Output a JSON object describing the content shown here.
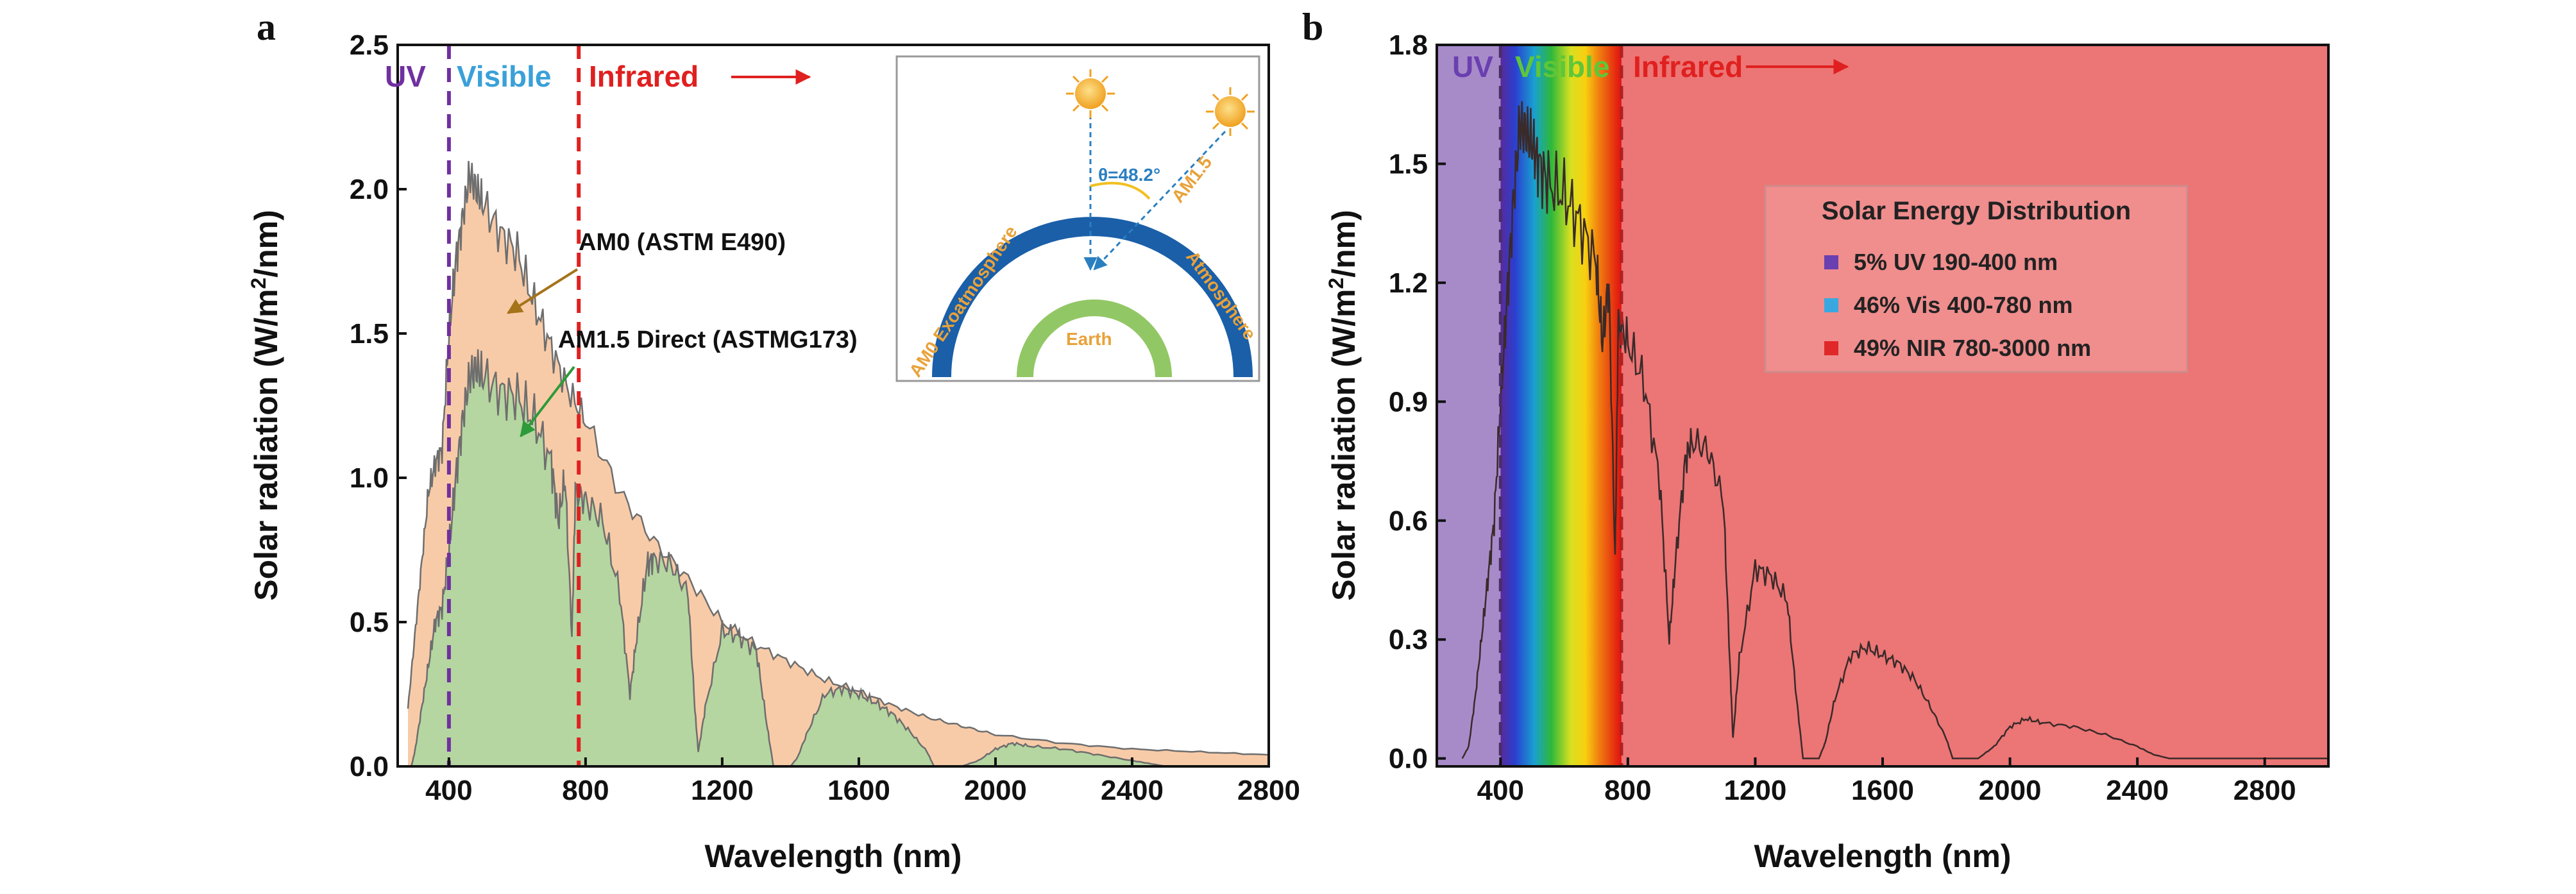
{
  "chart_data": [
    {
      "panel": "a",
      "type": "area",
      "xlabel": "Wavelength (nm)",
      "ylabel": "Solar radiation (W/m²/nm)",
      "xlim": [
        250,
        2800
      ],
      "ylim": [
        0,
        2.5
      ],
      "xticks": [
        400,
        800,
        1200,
        1600,
        2000,
        2400,
        2800
      ],
      "yticks": [
        0.0,
        0.5,
        1.0,
        1.5,
        2.0,
        2.5
      ],
      "xtick_labels": [
        "400",
        "800",
        "1200",
        "1600",
        "2000",
        "2400",
        "2800"
      ],
      "ytick_labels": [
        "0.0",
        "0.5",
        "1.0",
        "1.5",
        "2.0",
        "2.5"
      ],
      "grid": false,
      "regions": [
        {
          "label": "UV",
          "color": "#7030a0"
        },
        {
          "label": "Visible",
          "color": "#3aa0d8"
        },
        {
          "label": "Infrared",
          "color": "#e02020"
        }
      ],
      "boundaries": [
        {
          "x": 400,
          "color": "#7030a0"
        },
        {
          "x": 780,
          "color": "#e02020"
        }
      ],
      "annotations": {
        "am0": "AM0 (ASTM E490)",
        "am15": "AM1.5 Direct (ASTMG173)"
      },
      "series": [
        {
          "name": "AM0 (ASTM E490)",
          "fill": "#f8cba8",
          "x": [
            280,
            300,
            320,
            340,
            360,
            380,
            400,
            420,
            440,
            460,
            480,
            500,
            550,
            600,
            650,
            700,
            750,
            800,
            900,
            1000,
            1100,
            1200,
            1300,
            1400,
            1500,
            1600,
            1700,
            1800,
            1900,
            2000,
            2200,
            2400,
            2600,
            2800
          ],
          "y": [
            0.2,
            0.45,
            0.7,
            0.95,
            1.05,
            1.1,
            1.5,
            1.75,
            1.9,
            2.05,
            2.0,
            1.95,
            1.85,
            1.78,
            1.6,
            1.45,
            1.3,
            1.2,
            0.95,
            0.78,
            0.65,
            0.5,
            0.42,
            0.36,
            0.3,
            0.26,
            0.21,
            0.17,
            0.14,
            0.11,
            0.08,
            0.06,
            0.05,
            0.04
          ]
        },
        {
          "name": "AM1.5 Direct (ASTMG173)",
          "fill": "#b5d6a0",
          "x": [
            290,
            300,
            320,
            340,
            360,
            380,
            400,
            420,
            440,
            460,
            480,
            500,
            550,
            600,
            650,
            700,
            720,
            740,
            760,
            770,
            800,
            850,
            900,
            930,
            950,
            980,
            1000,
            1050,
            1100,
            1120,
            1130,
            1150,
            1200,
            1250,
            1300,
            1330,
            1350,
            1400,
            1420,
            1450,
            1500,
            1550,
            1600,
            1650,
            1700,
            1750,
            1800,
            1820,
            1850,
            1900,
            1950,
            2000,
            2050,
            2100,
            2200,
            2300,
            2400,
            2450,
            2500
          ],
          "y": [
            0,
            0.05,
            0.2,
            0.35,
            0.5,
            0.55,
            0.75,
            1.0,
            1.2,
            1.35,
            1.38,
            1.35,
            1.3,
            1.28,
            1.2,
            1.05,
            0.85,
            1.0,
            0.45,
            0.95,
            0.92,
            0.85,
            0.6,
            0.25,
            0.45,
            0.7,
            0.72,
            0.7,
            0.6,
            0.2,
            0.05,
            0.2,
            0.47,
            0.45,
            0.4,
            0.15,
            0,
            0,
            0.03,
            0.12,
            0.25,
            0.27,
            0.25,
            0.22,
            0.18,
            0.12,
            0.05,
            0,
            0,
            0,
            0.02,
            0.06,
            0.08,
            0.07,
            0.06,
            0.04,
            0.02,
            0.01,
            0
          ]
        }
      ],
      "inset": {
        "labels": [
          "AM0 Exoatmosphere",
          "AM1.5",
          "Atmosphere",
          "Earth"
        ],
        "angle_label": "θ=48.2°"
      }
    },
    {
      "panel": "b",
      "type": "line",
      "xlabel": "Wavelength (nm)",
      "ylabel": "Solar radiation (W/m²/nm)",
      "xlim": [
        200,
        3000
      ],
      "ylim": [
        -0.02,
        1.8
      ],
      "xticks": [
        400,
        800,
        1200,
        1600,
        2000,
        2400,
        2800
      ],
      "yticks": [
        0.0,
        0.3,
        0.6,
        0.9,
        1.2,
        1.5,
        1.8
      ],
      "xtick_labels": [
        "400",
        "800",
        "1200",
        "1600",
        "2000",
        "2400",
        "2800"
      ],
      "ytick_labels": [
        "0.0",
        "0.3",
        "0.6",
        "0.9",
        "1.2",
        "1.5",
        "1.8"
      ],
      "grid": false,
      "regions": [
        {
          "label": "UV",
          "color": "#a78bc9"
        },
        {
          "label": "Visible",
          "color": "#5fc63a"
        },
        {
          "label": "Infrared",
          "color": "#ec7575"
        }
      ],
      "boundaries": [
        {
          "x": 400,
          "color": "#4b2c6b"
        },
        {
          "x": 780,
          "color": "#b02020"
        }
      ],
      "legend": {
        "title": "Solar Energy Distribution",
        "position": "upper-center",
        "entries": [
          {
            "text": "5%   UV 190-400 nm",
            "color": "#6a3fb0"
          },
          {
            "text": "46% Vis 400-780 nm",
            "color": "#3aa8e0"
          },
          {
            "text": "49% NIR 780-3000 nm",
            "color": "#e02828"
          }
        ]
      },
      "series": [
        {
          "color": "#3a2a2a",
          "x": [
            280,
            300,
            320,
            340,
            360,
            380,
            400,
            420,
            440,
            460,
            480,
            500,
            520,
            550,
            600,
            650,
            700,
            720,
            740,
            760,
            770,
            800,
            850,
            900,
            930,
            950,
            980,
            1000,
            1050,
            1100,
            1120,
            1130,
            1150,
            1200,
            1250,
            1300,
            1330,
            1350,
            1400,
            1420,
            1450,
            1500,
            1550,
            1600,
            1650,
            1700,
            1750,
            1800,
            1820,
            1850,
            1900,
            1950,
            2000,
            2050,
            2100,
            2200,
            2300,
            2400,
            2450,
            2500,
            2600,
            2800,
            3000
          ],
          "y": [
            0,
            0.03,
            0.15,
            0.3,
            0.45,
            0.6,
            0.9,
            1.15,
            1.4,
            1.6,
            1.58,
            1.55,
            1.5,
            1.45,
            1.42,
            1.35,
            1.25,
            1.05,
            1.2,
            0.5,
            1.1,
            1.05,
            0.95,
            0.7,
            0.3,
            0.5,
            0.75,
            0.8,
            0.78,
            0.65,
            0.25,
            0.05,
            0.25,
            0.48,
            0.46,
            0.4,
            0.15,
            0,
            0,
            0.04,
            0.15,
            0.26,
            0.28,
            0.26,
            0.24,
            0.2,
            0.13,
            0.05,
            0,
            0,
            0,
            0.03,
            0.08,
            0.1,
            0.09,
            0.08,
            0.06,
            0.03,
            0.01,
            0,
            0,
            0,
            0
          ]
        }
      ]
    }
  ],
  "labels": {
    "panel_a": "a",
    "panel_b": "b",
    "uv": "UV",
    "visible": "Visible",
    "infrared": "Infrared",
    "am0": "AM0 (ASTM E490)",
    "am15": "AM1.5 Direct (ASTMG173)",
    "inset_am0": "AM0 Exoatmosphere",
    "inset_am15": "AM1.5",
    "inset_atm": "Atmosphere",
    "inset_earth": "Earth",
    "inset_angle": "θ=48.2°",
    "legend_title": "Solar Energy Distribution",
    "legend_uv": "5%   UV 190-400 nm",
    "legend_vis": "46% Vis 400-780 nm",
    "legend_nir": "49% NIR 780-3000 nm",
    "xlabel": "Wavelength (nm)",
    "ylabel_main": "Solar radiation (W/m",
    "ylabel_sup": "2",
    "ylabel_end": "/nm)"
  }
}
